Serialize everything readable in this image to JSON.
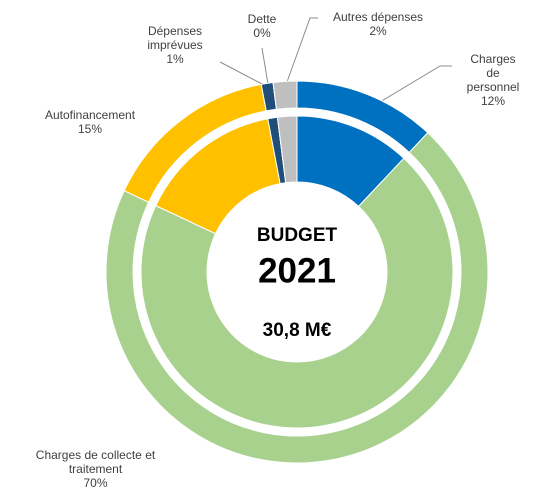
{
  "chart_data": {
    "type": "doughnut",
    "center_labels": [
      "BUDGET",
      "2021",
      "30,8 M€"
    ],
    "categories": [
      "Charges de personnel",
      "Charges de collecte et traitement",
      "Autofinancement",
      "Dépenses imprévues",
      "Dette",
      "Autres dépenses"
    ],
    "values": [
      12,
      70,
      15,
      1,
      0,
      2
    ],
    "value_labels": [
      "12%",
      "70%",
      "15%",
      "1%",
      "0%",
      "2%"
    ],
    "colors": [
      "#0070c0",
      "#a9d18e",
      "#ffc000",
      "#1f4e79",
      "#7f7f7f",
      "#bfbfbf"
    ]
  }
}
